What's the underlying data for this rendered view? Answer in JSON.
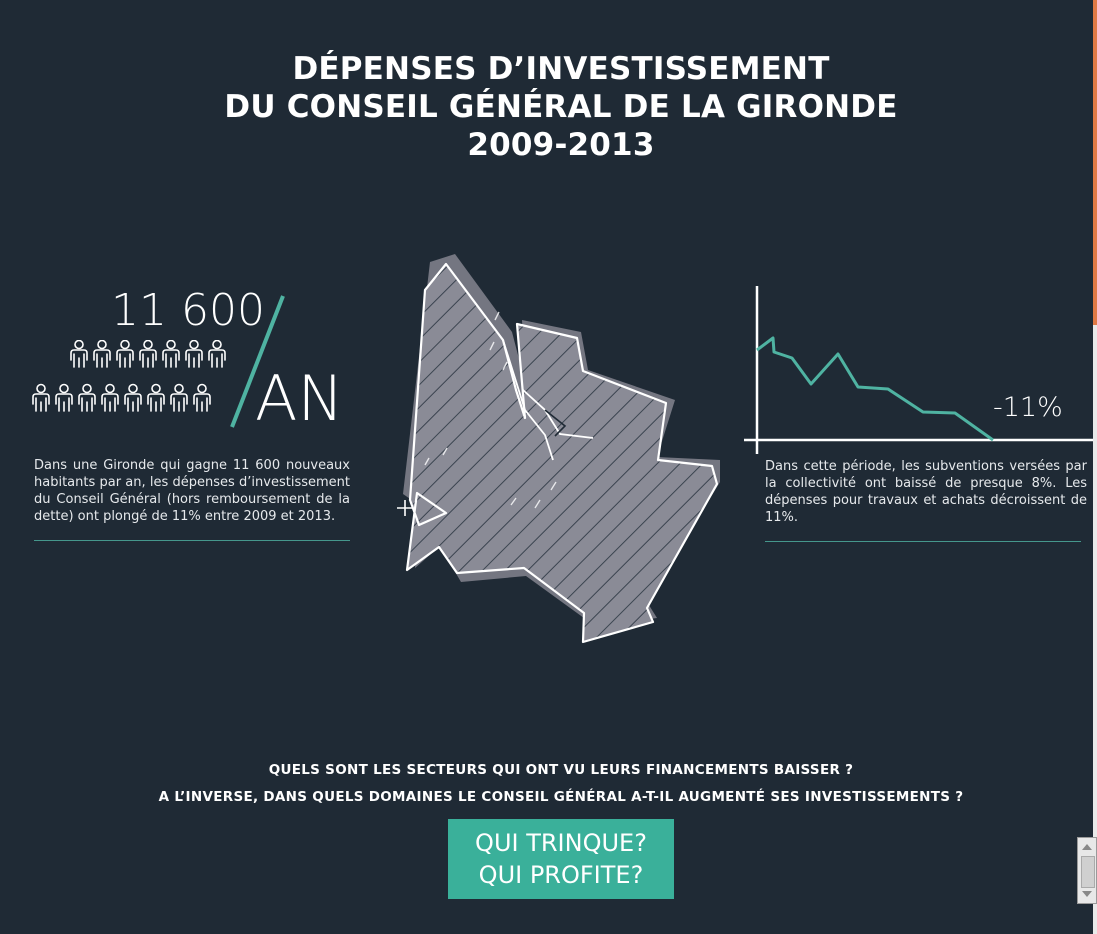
{
  "title": {
    "line1": "DÉPENSES D’INVESTISSEMENT",
    "line2": "DU CONSEIL GÉNÉRAL DE LA GIRONDE",
    "line3": "2009-2013"
  },
  "stat": {
    "number": "11 600",
    "unit": "AN",
    "people_count": 15
  },
  "left_text": "Dans une Gironde qui gagne 11 600 nouveaux habitants par an, les dépenses d’investissement du Conseil Général (hors remboursement de la dette) ont plongé de 11% entre 2009 et 2013.",
  "trend": {
    "label": "-11%",
    "text": "Dans cette période, les subventions versées par la collectivité ont baissé de presque 8%. Les dépenses pour travaux et achats décroissent de 11%."
  },
  "questions": {
    "line1": "QUELS SONT LES SECTEURS QUI ONT VU LEURS FINANCEMENTS BAISSER ?",
    "line2": "A L’INVERSE, DANS QUELS DOMAINES LE CONSEIL GÉNÉRAL A-T-IL AUGMENTÉ SES INVESTISSEMENTS ?"
  },
  "cta": {
    "line1": "QUI TRINQUE?",
    "line2": "QUI PROFITE?"
  },
  "colors": {
    "background": "#1f2a35",
    "accent": "#3ab09a",
    "line": "#4fb3a2",
    "map_fill": "#8a8b96"
  }
}
